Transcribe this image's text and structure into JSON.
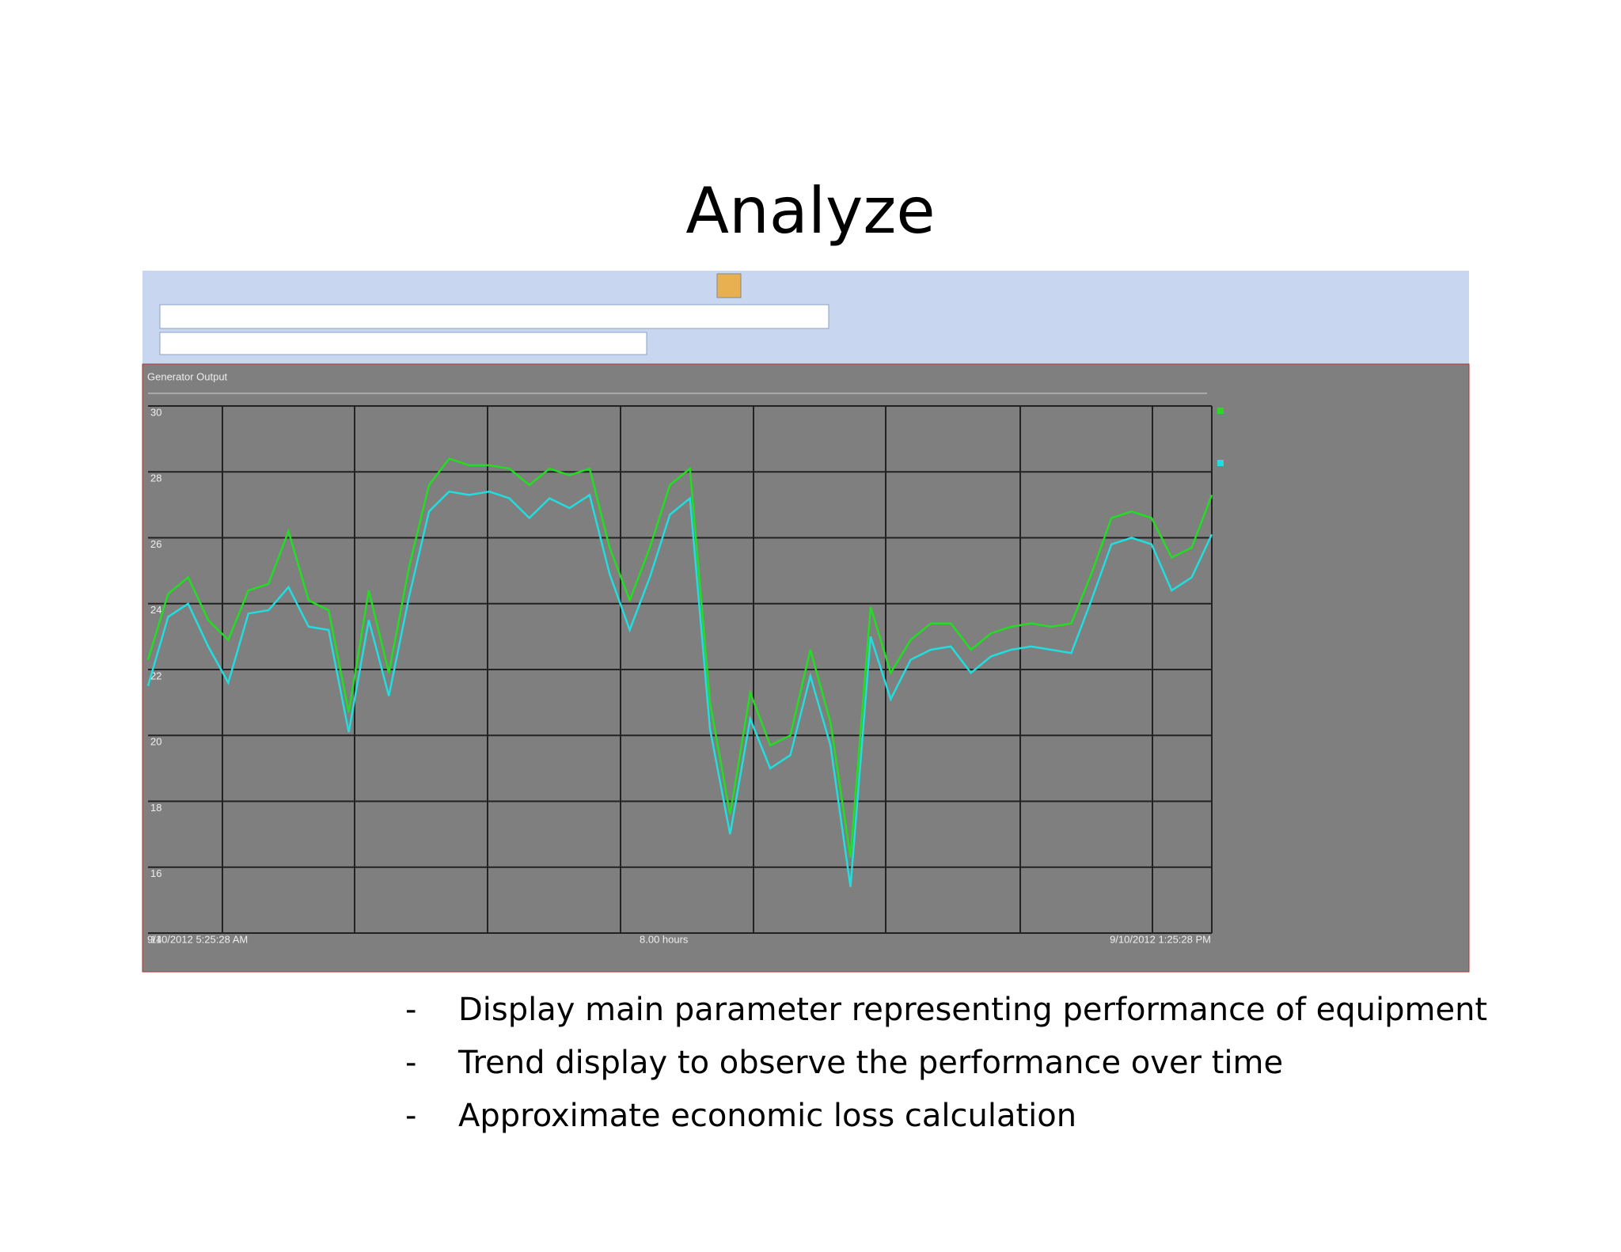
{
  "slide": {
    "title": "Analyze",
    "bullets": [
      {
        "marker": "-",
        "text": "Display main parameter representing performance of equipment"
      },
      {
        "marker": "-",
        "text": "Trend display to observe the performance over time"
      },
      {
        "marker": "-",
        "text": "Approximate economic loss calculation"
      }
    ]
  },
  "chart_data": {
    "type": "line",
    "title": "Generator Output",
    "x_start_label": "9/10/2012 5:25:28 AM",
    "x_end_label": "9/10/2012 1:25:28 PM",
    "x_span_label": "8.00 hours",
    "ylim": [
      14,
      30
    ],
    "yticks": [
      14,
      16,
      18,
      20,
      22,
      24,
      26,
      28,
      30
    ],
    "grid": true,
    "series": [
      {
        "color": "#22dd22",
        "values": [
          22.3,
          24.3,
          24.8,
          23.5,
          22.9,
          24.4,
          24.6,
          26.2,
          24.1,
          23.8,
          20.7,
          24.4,
          21.9,
          25.1,
          27.6,
          28.4,
          28.2,
          28.2,
          28.1,
          27.6,
          28.1,
          27.9,
          28.1,
          25.7,
          24.1,
          25.7,
          27.6,
          28.1,
          21.0,
          17.6,
          21.3,
          19.7,
          20.0,
          22.6,
          20.4,
          16.3,
          23.9,
          21.9,
          22.9,
          23.4,
          23.4,
          22.6,
          23.1,
          23.3,
          23.4,
          23.3,
          23.4,
          24.9,
          26.6,
          26.8,
          26.6,
          25.4,
          25.7,
          27.3
        ]
      },
      {
        "color": "#22dddd",
        "values": [
          21.5,
          23.6,
          24.0,
          22.7,
          21.6,
          23.7,
          23.8,
          24.5,
          23.3,
          23.2,
          20.1,
          23.5,
          21.2,
          24.2,
          26.8,
          27.4,
          27.3,
          27.4,
          27.2,
          26.6,
          27.2,
          26.9,
          27.3,
          24.9,
          23.2,
          24.8,
          26.7,
          27.2,
          20.2,
          17.0,
          20.5,
          19.0,
          19.4,
          21.8,
          19.7,
          15.4,
          23.0,
          21.1,
          22.3,
          22.6,
          22.7,
          21.9,
          22.4,
          22.6,
          22.7,
          22.6,
          22.5,
          24.1,
          25.8,
          26.0,
          25.8,
          24.4,
          24.8,
          26.1
        ]
      }
    ]
  }
}
